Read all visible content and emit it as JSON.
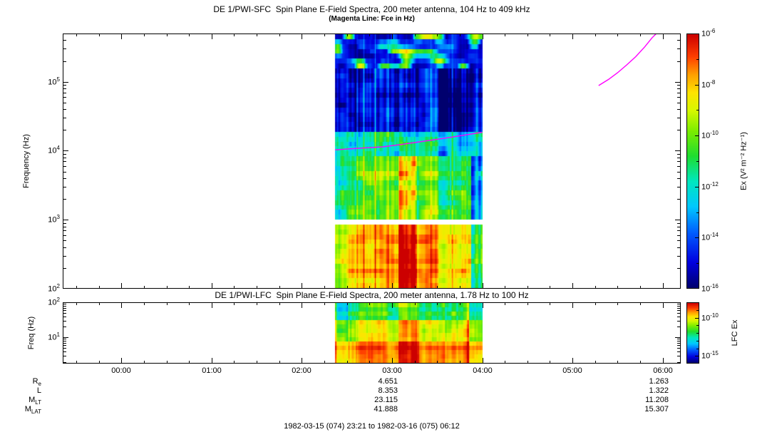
{
  "figure": {
    "footer": "1982-03-15 (074) 23:21 to 1982-03-16 (075) 06:12",
    "magenta": "#ff00ff",
    "background": "#ffffff"
  },
  "time_axis": {
    "start_hour": -0.65,
    "end_hour": 6.2,
    "tick_hours": [
      0,
      1,
      2,
      3,
      4,
      5,
      6
    ],
    "tick_labels": [
      "00:00",
      "01:00",
      "02:00",
      "03:00",
      "04:00",
      "05:00",
      "06:00"
    ],
    "minor_step_hours": 0.25
  },
  "ephemeris": {
    "rows": [
      {
        "label": "R",
        "sub": "e",
        "values": [
          "4.651",
          "1.263"
        ]
      },
      {
        "label": "L",
        "sub": "",
        "values": [
          "8.353",
          "1.322"
        ]
      },
      {
        "label": "M",
        "sub": "LT",
        "values": [
          "23.115",
          "11.208"
        ]
      },
      {
        "label": "M",
        "sub": "LAT",
        "values": [
          "41.888",
          "15.307"
        ]
      }
    ],
    "value_column_hours": [
      3,
      6
    ]
  },
  "colormap_stops": [
    [
      0.0,
      "#00006e"
    ],
    [
      0.1,
      "#0000e0"
    ],
    [
      0.22,
      "#0060ff"
    ],
    [
      0.32,
      "#00c8ff"
    ],
    [
      0.42,
      "#00e8c0"
    ],
    [
      0.52,
      "#20dd30"
    ],
    [
      0.62,
      "#7fee00"
    ],
    [
      0.7,
      "#d8f800"
    ],
    [
      0.77,
      "#ffe400"
    ],
    [
      0.84,
      "#ffa000"
    ],
    [
      0.91,
      "#ff4000"
    ],
    [
      1.0,
      "#cc0000"
    ]
  ],
  "chart_data": [
    {
      "type": "heatmap",
      "instrument": "DE 1/PWI-SFC",
      "title": "DE 1/PWI-SFC  Spin Plane E-Field Spectra, 200 meter antenna, 104 Hz to 409 kHz",
      "subtitle": "(Magenta Line: Fce in Hz)",
      "ylabel": "Frequency (Hz)",
      "yscale": "log",
      "ylim": [
        100,
        500000
      ],
      "ytick_exponents": [
        2,
        3,
        4,
        5
      ],
      "xlim_hours": [
        -0.65,
        6.2
      ],
      "data_window_hours": [
        2.37,
        4.0
      ],
      "colorbar": {
        "label": "Ex (V² m⁻² Hz⁻¹)",
        "tick_exponents": [
          -6,
          -8,
          -10,
          -12,
          -14,
          -16
        ],
        "range_exponents": [
          -6,
          -16
        ]
      },
      "fce_segments_hz": [
        [
          [
            2.37,
            10300
          ],
          [
            2.6,
            10800
          ],
          [
            2.9,
            11400
          ],
          [
            3.1,
            12300
          ],
          [
            3.3,
            13400
          ],
          [
            3.6,
            15300
          ],
          [
            3.85,
            17200
          ],
          [
            4.0,
            18500
          ]
        ],
        [
          [
            5.29,
            88000
          ],
          [
            5.4,
            108000
          ],
          [
            5.5,
            135000
          ],
          [
            5.6,
            175000
          ],
          [
            5.7,
            230000
          ],
          [
            5.8,
            320000
          ],
          [
            5.88,
            430000
          ],
          [
            5.93,
            500000
          ]
        ]
      ],
      "bands": [
        {
          "f0": 150000,
          "f1": 500000,
          "base": 0.13,
          "noise": 0.1,
          "streak": 0.06,
          "blob": 0.75
        },
        {
          "f0": 20000,
          "f1": 150000,
          "base": 0.07,
          "noise": 0.08,
          "streak": 0.28
        },
        {
          "f0": 8000,
          "f1": 20000,
          "base": 0.4,
          "noise": 0.13,
          "streak": 0.2
        },
        {
          "f0": 1050,
          "f1": 8000,
          "base": 0.56,
          "noise": 0.11,
          "streak": 0.2
        },
        {
          "f0": 860,
          "f1": 1050,
          "gap": true
        },
        {
          "f0": 100,
          "f1": 860,
          "base": 0.8,
          "noise": 0.07,
          "streak": 0.15
        }
      ],
      "hot_columns": [
        {
          "h0": 3.07,
          "h1": 3.28,
          "fmax": 8000,
          "boost": 0.18
        },
        {
          "h0": 3.05,
          "h1": 3.45,
          "fmax": 500000,
          "boost": 0.04
        }
      ],
      "cold_columns": [
        {
          "h0": 3.88,
          "h1": 4.0,
          "fmax": 8000,
          "drop": 0.3
        },
        {
          "h0": 2.37,
          "h1": 2.52,
          "fmax": 8000,
          "drop": 0.12
        }
      ],
      "quantize_rows": 52
    },
    {
      "type": "heatmap",
      "instrument": "DE 1/PWI-LFC",
      "title": "DE 1/PWI-LFC  Spin Plane E-Field Spectra, 200 meter antenna, 1.78 Hz to 100 Hz",
      "ylabel": "Freq (Hz)",
      "yscale": "log",
      "ylim": [
        1.78,
        100
      ],
      "ytick_exponents": [
        1,
        2
      ],
      "xlim_hours": [
        -0.65,
        6.2
      ],
      "data_window_hours": [
        2.37,
        4.0
      ],
      "colorbar": {
        "label": "LFC Ex",
        "tick_exponents": [
          -10,
          -15
        ],
        "range_exponents": [
          -8,
          -16
        ]
      },
      "fce_segments_hz": [],
      "bands": [
        {
          "f0": 35,
          "f1": 100,
          "base": 0.52,
          "noise": 0.1,
          "streak": 0.18
        },
        {
          "f0": 8,
          "f1": 35,
          "base": 0.72,
          "noise": 0.07,
          "streak": 0.14
        },
        {
          "f0": 1.78,
          "f1": 8,
          "base": 0.88,
          "noise": 0.05,
          "streak": 0.1
        }
      ],
      "hot_columns": [
        {
          "h0": 3.07,
          "h1": 3.3,
          "fmax": 100,
          "boost": 0.14
        }
      ],
      "cold_columns": [
        {
          "h0": 2.37,
          "h1": 2.6,
          "fmax": 100,
          "drop": 0.1
        },
        {
          "h0": 3.85,
          "h1": 4.0,
          "fmax": 100,
          "drop": 0.08
        }
      ],
      "quantize_rows": 14
    }
  ]
}
